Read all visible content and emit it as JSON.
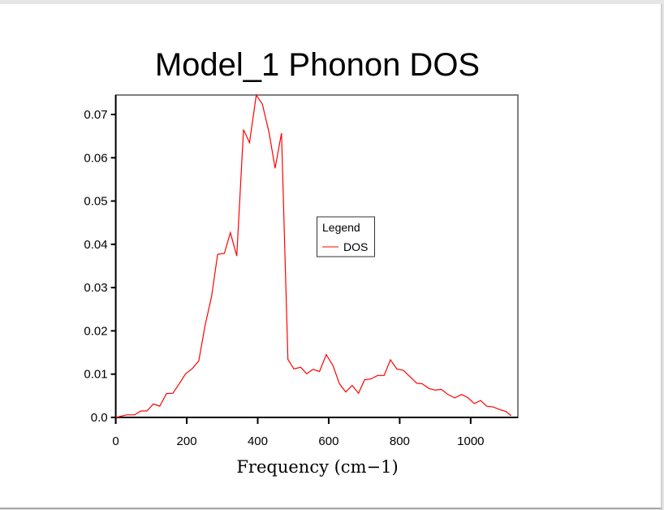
{
  "chart_data": {
    "type": "line",
    "title": "Model_1 Phonon DOS",
    "xlabel": "Frequency (cm−1)",
    "ylabel": "",
    "xlim": [
      0,
      1133
    ],
    "ylim": [
      0,
      0.0745
    ],
    "xticks": [
      0,
      200,
      400,
      600,
      800,
      1000
    ],
    "xtick_labels": [
      "0",
      "200",
      "400",
      "600",
      "800",
      "1000"
    ],
    "yticks": [
      0,
      0.01,
      0.02,
      0.03,
      0.04,
      0.05,
      0.06,
      0.07
    ],
    "ytick_labels": [
      "0.0",
      "0.01",
      "0.02",
      "0.03",
      "0.04",
      "0.05",
      "0.06",
      "0.07"
    ],
    "grid": false,
    "legend": {
      "title": "Legend",
      "placement": "center-right",
      "entries": [
        "DOS"
      ]
    },
    "series": [
      {
        "name": "DOS",
        "color": "#ff0000",
        "x": [
          0,
          31,
          53,
          71,
          88,
          106,
          124,
          143,
          161,
          179,
          197,
          216,
          234,
          252,
          270,
          287,
          306,
          323,
          341,
          360,
          377,
          396,
          413,
          432,
          449,
          467,
          485,
          502,
          521,
          538,
          556,
          574,
          593,
          612,
          630,
          648,
          666,
          684,
          701,
          719,
          738,
          756,
          774,
          792,
          810,
          829,
          848,
          863,
          882,
          900,
          917,
          936,
          955,
          974,
          992,
          1010,
          1028,
          1045,
          1064,
          1082,
          1099,
          1114
        ],
        "y": [
          0,
          0.0006,
          0.0006,
          0.0015,
          0.0015,
          0.0031,
          0.0026,
          0.0055,
          0.0056,
          0.0078,
          0.0101,
          0.0113,
          0.0131,
          0.0214,
          0.028,
          0.0377,
          0.0379,
          0.0427,
          0.0373,
          0.0665,
          0.0635,
          0.0745,
          0.0724,
          0.0658,
          0.0576,
          0.0657,
          0.0134,
          0.0112,
          0.0116,
          0.0101,
          0.0111,
          0.0106,
          0.0145,
          0.012,
          0.0078,
          0.0059,
          0.0074,
          0.0056,
          0.0087,
          0.0089,
          0.0097,
          0.0097,
          0.0133,
          0.0112,
          0.0109,
          0.0094,
          0.0079,
          0.0078,
          0.0067,
          0.0063,
          0.0065,
          0.0053,
          0.0045,
          0.0053,
          0.0046,
          0.0032,
          0.0039,
          0.0026,
          0.0024,
          0.0018,
          0.0014,
          0.0004
        ]
      }
    ]
  }
}
